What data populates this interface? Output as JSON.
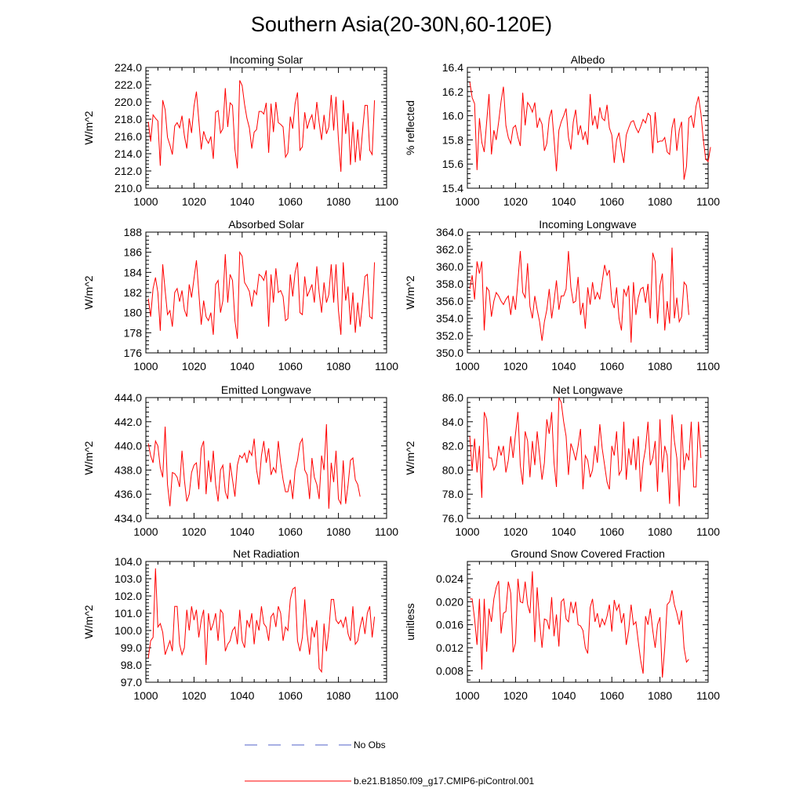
{
  "title": "Southern Asia(20-30N,60-120E)",
  "colors": {
    "model": "#ff0000",
    "obs": "#5060c8",
    "axis": "#000000"
  },
  "legend": {
    "obs_label": "No Obs",
    "model_label": "b.e21.B1850.f09_g17.CMIP6-piControl.001"
  },
  "chart_data": [
    {
      "type": "line",
      "title": "Incoming Solar",
      "ylabel": "W/m^2",
      "xlabel": "",
      "xlim": [
        1000,
        1100
      ],
      "ylim": [
        210,
        224
      ],
      "x_ticks": [
        1000,
        1020,
        1040,
        1060,
        1080,
        1100
      ],
      "y_ticks": [
        "210.0",
        "212.0",
        "214.0",
        "216.0",
        "218.0",
        "220.0",
        "222.0",
        "224.0"
      ],
      "x_start": 1001,
      "series": [
        {
          "name": "b.e21.B1850.f09_g17.CMIP6-piControl.001",
          "values": [
            217.7,
            215.4,
            218.5,
            218.1,
            217.8,
            212.6,
            220.2,
            219.1,
            215.9,
            215.0,
            213.9,
            217.2,
            217.6,
            217.0,
            218.4,
            216.1,
            214.6,
            218.1,
            216.4,
            219.5,
            221.2,
            217.9,
            214.5,
            216.6,
            215.7,
            215.2,
            216.0,
            213.4,
            218.8,
            219.0,
            216.4,
            216.9,
            221.6,
            217.1,
            219.9,
            219.6,
            214.5,
            212.3,
            222.5,
            221.9,
            219.7,
            218.1,
            217.0,
            214.6,
            216.5,
            216.8,
            218.9,
            218.9,
            218.6,
            219.9,
            214.1,
            219.8,
            216.5,
            220.0,
            217.6,
            217.4,
            217.1,
            213.6,
            214.1,
            218.3,
            216.9,
            219.8,
            221.1,
            214.4,
            214.8,
            218.8,
            216.9,
            217.9,
            218.5,
            216.8,
            220.0,
            217.6,
            215.6,
            218.5,
            216.3,
            217.1,
            220.8,
            216.7,
            220.6,
            215.6,
            211.9,
            220.2,
            216.3,
            218.7,
            212.7,
            217.7,
            213.0,
            216.8,
            213.2,
            216.6,
            219.6,
            219.6,
            214.4,
            213.9,
            220.2
          ]
        }
      ]
    },
    {
      "type": "line",
      "title": "Albedo",
      "ylabel": "% reflected",
      "xlabel": "",
      "xlim": [
        1000,
        1100
      ],
      "ylim": [
        15.4,
        16.4
      ],
      "x_ticks": [
        1000,
        1020,
        1040,
        1060,
        1080,
        1100
      ],
      "y_ticks": [
        "15.4",
        "15.6",
        "15.8",
        "16.0",
        "16.2",
        "16.4"
      ],
      "x_start": 1001,
      "series": [
        {
          "name": "b.e21.B1850.f09_g17.CMIP6-piControl.001",
          "values": [
            16.28,
            16.15,
            16.1,
            15.55,
            15.98,
            15.78,
            15.7,
            15.95,
            16.18,
            15.68,
            15.88,
            15.8,
            15.95,
            16.12,
            16.24,
            15.92,
            15.82,
            15.77,
            15.9,
            15.92,
            15.82,
            15.75,
            16.19,
            15.92,
            16.11,
            16.08,
            16.03,
            16.11,
            15.9,
            15.98,
            15.93,
            15.71,
            15.77,
            15.98,
            16.05,
            15.81,
            15.54,
            15.88,
            15.95,
            16.0,
            16.06,
            15.82,
            15.72,
            15.95,
            16.05,
            15.84,
            15.92,
            15.8,
            15.87,
            15.76,
            16.18,
            15.92,
            16.0,
            15.89,
            16.07,
            15.98,
            15.96,
            16.09,
            15.9,
            15.84,
            15.61,
            15.8,
            15.86,
            15.71,
            15.61,
            15.84,
            15.9,
            15.95,
            15.96,
            15.9,
            15.86,
            15.91,
            15.97,
            15.94,
            16.02,
            16.0,
            15.69,
            16.03,
            15.78,
            15.79,
            15.79,
            15.82,
            15.7,
            15.68,
            15.9,
            15.98,
            15.71,
            15.88,
            15.95,
            15.47,
            15.58,
            15.98,
            16.0,
            15.9,
            16.08,
            16.16,
            16.02,
            15.8,
            15.64,
            15.62,
            15.74
          ]
        }
      ]
    },
    {
      "type": "line",
      "title": "Absorbed Solar",
      "ylabel": "W/m^2",
      "xlabel": "",
      "xlim": [
        1000,
        1100
      ],
      "ylim": [
        176,
        188
      ],
      "x_ticks": [
        1000,
        1020,
        1040,
        1060,
        1080,
        1100
      ],
      "y_ticks": [
        "176",
        "178",
        "180",
        "182",
        "184",
        "186",
        "188"
      ],
      "x_start": 1001,
      "series": [
        {
          "name": "b.e21.B1850.f09_g17.CMIP6-piControl.001",
          "values": [
            181.4,
            179.6,
            182.4,
            183.5,
            182.0,
            178.2,
            184.8,
            182.2,
            179.8,
            180.2,
            178.6,
            182.0,
            182.4,
            181.1,
            182.2,
            180.3,
            179.6,
            182.8,
            181.5,
            183.4,
            185.2,
            182.0,
            178.8,
            181.2,
            179.6,
            179.2,
            180.0,
            177.8,
            182.8,
            183.2,
            180.0,
            181.2,
            185.8,
            181.0,
            183.8,
            183.2,
            179.2,
            177.4,
            186.0,
            185.6,
            183.0,
            182.6,
            182.1,
            180.6,
            182.2,
            181.8,
            183.8,
            183.6,
            183.2,
            184.2,
            178.6,
            183.8,
            181.0,
            184.4,
            182.0,
            182.2,
            181.6,
            179.2,
            179.4,
            183.8,
            181.6,
            184.0,
            185.0,
            180.0,
            179.8,
            183.6,
            181.6,
            182.2,
            182.8,
            181.0,
            184.6,
            182.0,
            180.0,
            183.0,
            181.0,
            181.8,
            184.8,
            181.0,
            184.8,
            180.2,
            177.8,
            185.0,
            181.2,
            182.6,
            178.8,
            182.0,
            178.0,
            181.0,
            178.6,
            181.0,
            183.6,
            183.8,
            179.6,
            179.4,
            185.0
          ]
        }
      ]
    },
    {
      "type": "line",
      "title": "Incoming Longwave",
      "ylabel": "W/m^2",
      "xlabel": "",
      "xlim": [
        1000,
        1100
      ],
      "ylim": [
        350,
        364
      ],
      "x_ticks": [
        1000,
        1020,
        1040,
        1060,
        1080,
        1100
      ],
      "y_ticks": [
        "350.0",
        "352.0",
        "354.0",
        "356.0",
        "358.0",
        "360.0",
        "362.0",
        "364.0"
      ],
      "x_start": 1001,
      "series": [
        {
          "name": "b.e21.B1850.f09_g17.CMIP6-piControl.001",
          "values": [
            357.4,
            359.0,
            356.2,
            360.6,
            359.2,
            360.6,
            352.6,
            357.6,
            357.2,
            354.2,
            356.0,
            357.0,
            356.6,
            356.0,
            355.6,
            356.2,
            356.6,
            354.4,
            356.6,
            355.0,
            358.4,
            361.8,
            357.0,
            356.4,
            360.4,
            355.4,
            354.0,
            356.6,
            355.0,
            353.6,
            351.4,
            353.6,
            355.0,
            357.4,
            354.0,
            356.0,
            358.4,
            355.0,
            356.6,
            356.6,
            357.4,
            361.8,
            357.6,
            355.8,
            356.0,
            358.8,
            354.4,
            355.8,
            352.8,
            357.6,
            355.6,
            358.2,
            356.2,
            357.0,
            356.2,
            358.2,
            360.2,
            359.0,
            359.6,
            356.0,
            355.2,
            357.6,
            354.0,
            352.6,
            357.4,
            356.6,
            357.8,
            351.2,
            358.2,
            354.4,
            356.4,
            357.4,
            357.6,
            355.8,
            358.0,
            354.0,
            361.6,
            360.6,
            353.4,
            357.8,
            359.2,
            352.6,
            356.0,
            353.4,
            362.2,
            354.0,
            356.4,
            353.6,
            354.2,
            358.2,
            357.8,
            354.4
          ]
        }
      ]
    },
    {
      "type": "line",
      "title": "Emitted Longwave",
      "ylabel": "W/m^2",
      "xlabel": "",
      "xlim": [
        1000,
        1100
      ],
      "ylim": [
        434,
        444
      ],
      "x_ticks": [
        1000,
        1020,
        1040,
        1060,
        1080,
        1100
      ],
      "y_ticks": [
        "434.0",
        "436.0",
        "438.0",
        "440.0",
        "442.0",
        "444.0"
      ],
      "x_start": 1001,
      "series": [
        {
          "name": "b.e21.B1850.f09_g17.CMIP6-piControl.001",
          "values": [
            440.2,
            439.2,
            438.6,
            440.4,
            440.0,
            438.2,
            437.4,
            441.6,
            436.8,
            435.0,
            437.8,
            437.7,
            437.4,
            436.6,
            439.6,
            437.2,
            435.4,
            436.0,
            437.8,
            438.4,
            438.6,
            436.4,
            439.8,
            440.4,
            436.0,
            438.8,
            437.0,
            439.6,
            436.8,
            435.4,
            438.0,
            438.4,
            436.2,
            435.6,
            438.6,
            437.2,
            435.8,
            438.4,
            439.2,
            439.0,
            439.4,
            438.6,
            439.6,
            439.2,
            440.6,
            438.0,
            436.8,
            439.2,
            440.4,
            438.6,
            439.8,
            437.6,
            438.2,
            437.8,
            440.4,
            438.6,
            437.2,
            436.2,
            436.2,
            437.2,
            435.6,
            438.0,
            438.8,
            440.2,
            440.6,
            438.0,
            437.6,
            435.6,
            439.0,
            437.4,
            436.8,
            435.6,
            439.2,
            438.0,
            441.8,
            434.8,
            438.6,
            437.0,
            439.6,
            435.6,
            435.2,
            438.8,
            435.2,
            436.8,
            438.8,
            439.0,
            437.2,
            436.8,
            435.8
          ]
        }
      ]
    },
    {
      "type": "line",
      "title": "Net Longwave",
      "ylabel": "W/m^2",
      "xlabel": "",
      "xlim": [
        1000,
        1100
      ],
      "ylim": [
        76,
        86
      ],
      "x_ticks": [
        1000,
        1020,
        1040,
        1060,
        1080,
        1100
      ],
      "y_ticks": [
        "76.0",
        "78.0",
        "80.0",
        "82.0",
        "84.0",
        "86.0"
      ],
      "x_start": 1001,
      "series": [
        {
          "name": "b.e21.B1850.f09_g17.CMIP6-piControl.001",
          "values": [
            82.8,
            80.0,
            82.6,
            79.8,
            82.0,
            77.7,
            84.8,
            84.2,
            81.0,
            81.0,
            80.0,
            80.4,
            82.0,
            81.2,
            82.0,
            79.8,
            80.8,
            82.8,
            81.0,
            83.0,
            84.8,
            80.4,
            78.8,
            83.2,
            82.4,
            79.4,
            82.4,
            80.4,
            83.2,
            81.2,
            79.2,
            80.6,
            84.2,
            83.0,
            84.8,
            80.6,
            78.6,
            86.0,
            85.6,
            84.0,
            82.8,
            79.6,
            82.2,
            81.6,
            80.8,
            82.0,
            83.4,
            78.4,
            81.2,
            80.8,
            79.4,
            80.0,
            82.0,
            80.6,
            83.8,
            81.8,
            80.4,
            79.0,
            78.4,
            82.0,
            81.2,
            83.2,
            79.6,
            80.0,
            84.0,
            79.2,
            81.8,
            80.4,
            82.6,
            80.0,
            82.8,
            78.2,
            80.6,
            81.8,
            84.0,
            80.4,
            81.0,
            82.4,
            78.2,
            84.2,
            79.8,
            82.0,
            81.2,
            77.2,
            84.6,
            82.4,
            81.0,
            77.0,
            83.8,
            80.0,
            81.4,
            80.8,
            84.0,
            78.6,
            78.6,
            84.0,
            81.0
          ]
        }
      ]
    },
    {
      "type": "line",
      "title": "Net Radiation",
      "ylabel": "W/m^2",
      "xlabel": "",
      "xlim": [
        1000,
        1100
      ],
      "ylim": [
        97,
        104
      ],
      "x_ticks": [
        1000,
        1020,
        1040,
        1060,
        1080,
        1100
      ],
      "y_ticks": [
        "97.0",
        "98.0",
        "99.0",
        "100.0",
        "101.0",
        "102.0",
        "103.0",
        "104.0"
      ],
      "x_start": 1001,
      "series": [
        {
          "name": "b.e21.B1850.f09_g17.CMIP6-piControl.001",
          "values": [
            98.4,
            99.4,
            99.6,
            103.6,
            100.2,
            100.4,
            99.9,
            98.6,
            99.0,
            99.4,
            98.8,
            101.4,
            101.4,
            99.2,
            98.6,
            99.0,
            101.2,
            100.0,
            101.4,
            100.6,
            101.2,
            99.6,
            100.6,
            101.2,
            98.0,
            101.0,
            100.0,
            100.4,
            101.0,
            99.4,
            101.2,
            101.0,
            98.8,
            99.2,
            99.4,
            100.0,
            100.2,
            99.2,
            101.2,
            99.4,
            99.0,
            100.6,
            100.2,
            101.0,
            99.2,
            100.6,
            100.0,
            101.4,
            100.4,
            100.2,
            99.4,
            100.8,
            101.0,
            100.2,
            101.4,
            101.0,
            99.4,
            100.2,
            100.0,
            101.8,
            102.4,
            102.5,
            99.4,
            98.8,
            99.6,
            101.8,
            99.8,
            98.6,
            100.2,
            99.6,
            100.6,
            97.8,
            97.6,
            100.4,
            98.8,
            100.0,
            101.8,
            101.8,
            100.6,
            100.4,
            100.6,
            100.2,
            100.8,
            99.8,
            99.4,
            101.4,
            99.2,
            99.4,
            100.2,
            100.8,
            99.8,
            101.0,
            101.4,
            99.6,
            100.8
          ]
        }
      ]
    },
    {
      "type": "line",
      "title": "Ground Snow Covered Fraction",
      "ylabel": "unitless",
      "xlabel": "",
      "xlim": [
        1000,
        1100
      ],
      "ylim": [
        0.006,
        0.027
      ],
      "x_ticks": [
        1000,
        1020,
        1040,
        1060,
        1080,
        1100
      ],
      "y_ticks": [
        "0.008",
        "0.012",
        "0.016",
        "0.020",
        "0.024"
      ],
      "x_start": 1001,
      "series": [
        {
          "name": "b.e21.B1850.f09_g17.CMIP6-piControl.001",
          "values": [
            0.0205,
            0.0205,
            0.017,
            0.0125,
            0.0205,
            0.0082,
            0.0205,
            0.0113,
            0.0188,
            0.0165,
            0.0205,
            0.0225,
            0.0236,
            0.0145,
            0.018,
            0.0183,
            0.0235,
            0.0215,
            0.0112,
            0.0128,
            0.024,
            0.02,
            0.0198,
            0.0235,
            0.0195,
            0.018,
            0.0253,
            0.013,
            0.0225,
            0.0165,
            0.012,
            0.017,
            0.0168,
            0.0152,
            0.0208,
            0.014,
            0.0178,
            0.0122,
            0.02,
            0.0205,
            0.017,
            0.0165,
            0.02,
            0.018,
            0.02,
            0.016,
            0.0158,
            0.015,
            0.012,
            0.011,
            0.019,
            0.0205,
            0.0165,
            0.018,
            0.0155,
            0.017,
            0.016,
            0.0175,
            0.0195,
            0.0148,
            0.0203,
            0.0185,
            0.0195,
            0.0163,
            0.018,
            0.0125,
            0.015,
            0.0195,
            0.016,
            0.0165,
            0.013,
            0.0098,
            0.0075,
            0.0175,
            0.016,
            0.0188,
            0.015,
            0.012,
            0.016,
            0.0173,
            0.0068,
            0.012,
            0.0195,
            0.02,
            0.022,
            0.0195,
            0.018,
            0.016,
            0.0185,
            0.012,
            0.0095,
            0.01
          ]
        }
      ]
    }
  ]
}
